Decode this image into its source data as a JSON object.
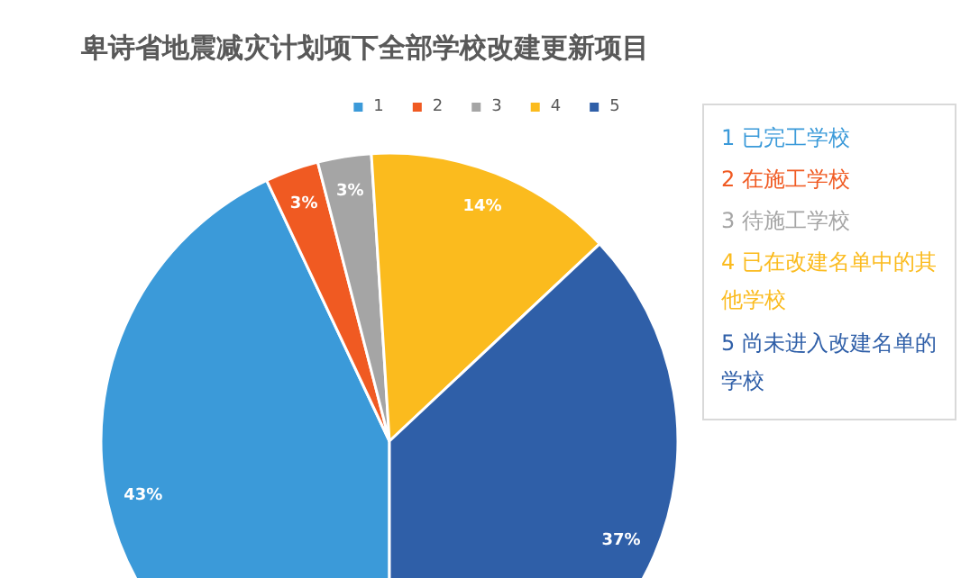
{
  "chart_data": {
    "type": "pie",
    "title": "卑诗省地震减灾计划项下全部学校改建更新项目",
    "categories": [
      "1",
      "2",
      "3",
      "4",
      "5"
    ],
    "values": [
      43,
      3,
      3,
      14,
      37
    ],
    "colors": [
      "#3b9ad9",
      "#f05a22",
      "#a5a5a5",
      "#fbbb1e",
      "#2f5fa8"
    ],
    "value_labels": [
      "43%",
      "3%",
      "3%",
      "14%",
      "37%"
    ],
    "legend": "top",
    "annotations": [
      "1 已完工学校",
      "2 在施工学校",
      "3 待施工学校",
      "4 已在改建名单中的其他学校",
      "5 尚未进入改建名单的学校"
    ]
  }
}
